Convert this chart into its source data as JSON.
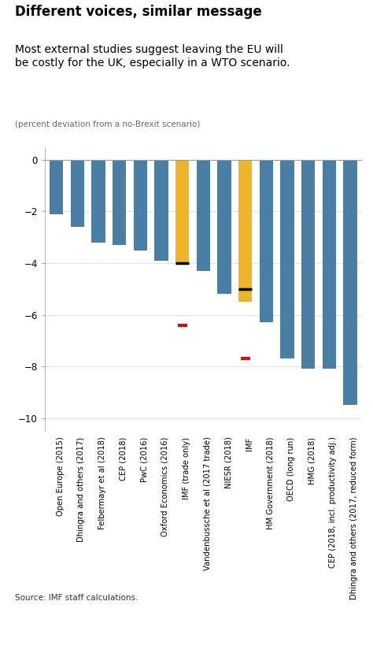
{
  "title_bold": "Different voices, similar message",
  "title_sub": "Most external studies suggest leaving the EU will\nbe costly for the UK, especially in a WTO scenario.",
  "title_note": "(percent deviation from a no-Brexit scenario)",
  "source": "Source: IMF staff calculations.",
  "categories": [
    "Open Europe (2015)",
    "Dhingra and others (2017)",
    "Felbermayr et al (2018)",
    "CEP (2018)",
    "PwC (2016)",
    "Oxford Economics (2016)",
    "IMF (trade only)",
    "Vandenbussche et al (2017 trade)",
    "NIESR (2018)",
    "IMF",
    "HM Government (2018)",
    "OECD (long run)",
    "HMG (2018)",
    "CEP (2018, incl. productivity adj.)",
    "Dhingra and others (2017, reduced form)"
  ],
  "values": [
    -2.1,
    -2.6,
    -3.2,
    -3.3,
    -3.5,
    -3.9,
    -4.0,
    -4.3,
    -5.2,
    -5.5,
    -6.3,
    -7.7,
    -8.1,
    -8.1,
    -9.5
  ],
  "colors": [
    "#4a7fa5",
    "#4a7fa5",
    "#4a7fa5",
    "#4a7fa5",
    "#4a7fa5",
    "#4a7fa5",
    "#f0b429",
    "#4a7fa5",
    "#4a7fa5",
    "#f0b429",
    "#4a7fa5",
    "#4a7fa5",
    "#4a7fa5",
    "#4a7fa5",
    "#4a7fa5"
  ],
  "black_marks": [
    {
      "bar_index": 6,
      "y": -4.0
    },
    {
      "bar_index": 9,
      "y": -5.0
    }
  ],
  "red_marks": [
    {
      "bar_index": 6,
      "y": -6.4
    },
    {
      "bar_index": 9,
      "y": -7.7
    }
  ],
  "ylim": [
    -10.5,
    0.5
  ],
  "yticks": [
    0,
    -2,
    -4,
    -6,
    -8,
    -10
  ],
  "bg_color": "#ffffff",
  "footer_color": "#7baec8",
  "bar_width": 0.65
}
